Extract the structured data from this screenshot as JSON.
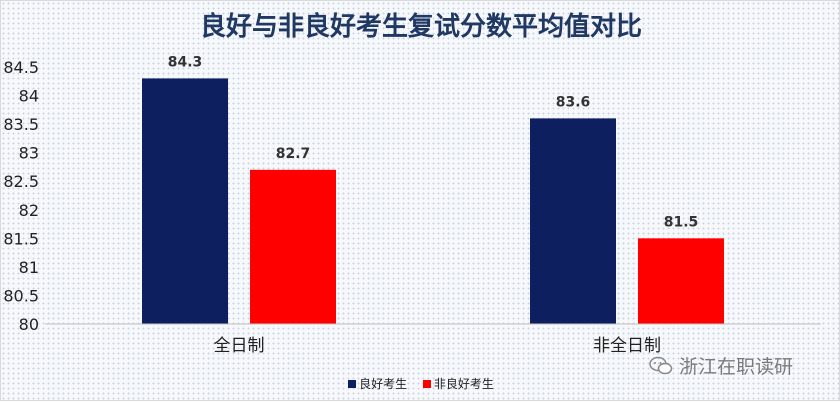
{
  "title": "良好与非良好考生复试分数平均值对比",
  "watermark": "浙江在职读研",
  "colors": {
    "good": "#0d1f5e",
    "not_good": "#ff0000"
  },
  "chart_data": {
    "type": "bar",
    "title": "良好与非良好考生复试分数平均值对比",
    "categories": [
      "全日制",
      "非全日制"
    ],
    "series": [
      {
        "name": "良好考生",
        "values": [
          84.3,
          83.6
        ]
      },
      {
        "name": "非良好考生",
        "values": [
          82.7,
          81.5
        ]
      }
    ],
    "ylim": [
      80,
      84.5
    ],
    "yticks": [
      "80",
      "80.5",
      "81",
      "81.5",
      "82",
      "82.5",
      "83",
      "83.5",
      "84",
      "84.5"
    ],
    "grid": false,
    "legend": "bottom"
  }
}
